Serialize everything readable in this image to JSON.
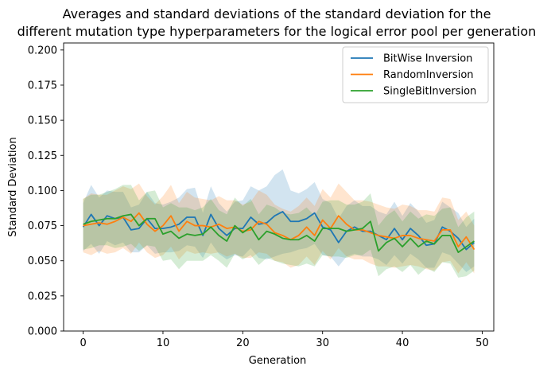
{
  "chart_data": {
    "type": "line",
    "title_line1": "Averages and standard deviations of the standard deviation for the",
    "title_line2": "different mutation type hyperparameters for the logical error pool per generation",
    "xlabel": "Generation",
    "ylabel": "Standard Deviation",
    "xlim": [
      -2.45,
      51.45
    ],
    "ylim": [
      0,
      0.205
    ],
    "xticks": [
      0,
      10,
      20,
      30,
      40,
      50
    ],
    "yticks": [
      0.0,
      0.025,
      0.05,
      0.075,
      0.1,
      0.125,
      0.15,
      0.175,
      0.2
    ],
    "ytick_labels": [
      "0.000",
      "0.025",
      "0.050",
      "0.075",
      "0.100",
      "0.125",
      "0.150",
      "0.175",
      "0.200"
    ],
    "legend_position": "upper right",
    "band": "mean ± one standard deviation (shaded)",
    "series": [
      {
        "name": "BitWise Inversion",
        "color": "#1f77b4",
        "values": [
          0.074,
          0.083,
          0.075,
          0.082,
          0.08,
          0.081,
          0.072,
          0.073,
          0.08,
          0.073,
          0.073,
          0.074,
          0.076,
          0.081,
          0.081,
          0.068,
          0.083,
          0.073,
          0.068,
          0.073,
          0.073,
          0.081,
          0.076,
          0.077,
          0.082,
          0.085,
          0.078,
          0.078,
          0.08,
          0.084,
          0.074,
          0.072,
          0.063,
          0.071,
          0.074,
          0.071,
          0.071,
          0.068,
          0.065,
          0.073,
          0.065,
          0.073,
          0.068,
          0.061,
          0.062,
          0.074,
          0.071,
          0.066,
          0.058,
          0.063
        ],
        "std": [
          0.017,
          0.021,
          0.02,
          0.018,
          0.019,
          0.018,
          0.016,
          0.017,
          0.019,
          0.018,
          0.017,
          0.018,
          0.019,
          0.02,
          0.021,
          0.016,
          0.02,
          0.018,
          0.017,
          0.019,
          0.02,
          0.022,
          0.024,
          0.026,
          0.029,
          0.03,
          0.022,
          0.02,
          0.021,
          0.022,
          0.02,
          0.019,
          0.017,
          0.018,
          0.019,
          0.018,
          0.018,
          0.017,
          0.018,
          0.019,
          0.017,
          0.018,
          0.017,
          0.016,
          0.017,
          0.018,
          0.017,
          0.018,
          0.016,
          0.017
        ]
      },
      {
        "name": "RandomInversion",
        "color": "#ff7f0e",
        "values": [
          0.075,
          0.076,
          0.077,
          0.076,
          0.078,
          0.081,
          0.078,
          0.084,
          0.076,
          0.071,
          0.075,
          0.082,
          0.071,
          0.078,
          0.075,
          0.075,
          0.074,
          0.076,
          0.073,
          0.074,
          0.071,
          0.072,
          0.078,
          0.076,
          0.07,
          0.068,
          0.065,
          0.068,
          0.074,
          0.068,
          0.079,
          0.073,
          0.082,
          0.076,
          0.072,
          0.072,
          0.07,
          0.068,
          0.067,
          0.066,
          0.068,
          0.068,
          0.066,
          0.065,
          0.064,
          0.072,
          0.072,
          0.06,
          0.067,
          0.058
        ],
        "std": [
          0.019,
          0.022,
          0.02,
          0.021,
          0.022,
          0.022,
          0.023,
          0.021,
          0.02,
          0.019,
          0.021,
          0.022,
          0.02,
          0.021,
          0.02,
          0.019,
          0.019,
          0.02,
          0.02,
          0.019,
          0.019,
          0.02,
          0.022,
          0.021,
          0.02,
          0.019,
          0.02,
          0.021,
          0.021,
          0.021,
          0.022,
          0.022,
          0.023,
          0.023,
          0.021,
          0.021,
          0.022,
          0.022,
          0.021,
          0.021,
          0.022,
          0.021,
          0.02,
          0.021,
          0.021,
          0.023,
          0.022,
          0.019,
          0.018,
          0.017
        ]
      },
      {
        "name": "SingleBitInversion",
        "color": "#2ca02c",
        "values": [
          0.076,
          0.078,
          0.079,
          0.08,
          0.08,
          0.082,
          0.083,
          0.075,
          0.08,
          0.08,
          0.069,
          0.071,
          0.066,
          0.069,
          0.068,
          0.069,
          0.074,
          0.068,
          0.064,
          0.075,
          0.07,
          0.074,
          0.065,
          0.071,
          0.069,
          0.066,
          0.065,
          0.065,
          0.068,
          0.064,
          0.073,
          0.073,
          0.073,
          0.071,
          0.072,
          0.073,
          0.078,
          0.057,
          0.063,
          0.066,
          0.06,
          0.066,
          0.06,
          0.064,
          0.062,
          0.068,
          0.068,
          0.056,
          0.06,
          0.064
        ],
        "std": [
          0.018,
          0.019,
          0.018,
          0.019,
          0.021,
          0.022,
          0.021,
          0.018,
          0.019,
          0.02,
          0.019,
          0.02,
          0.022,
          0.019,
          0.018,
          0.019,
          0.02,
          0.018,
          0.019,
          0.02,
          0.019,
          0.02,
          0.018,
          0.019,
          0.019,
          0.018,
          0.018,
          0.019,
          0.02,
          0.018,
          0.019,
          0.02,
          0.02,
          0.019,
          0.018,
          0.019,
          0.02,
          0.018,
          0.019,
          0.02,
          0.018,
          0.019,
          0.02,
          0.019,
          0.02,
          0.019,
          0.02,
          0.018,
          0.021,
          0.021
        ]
      }
    ]
  }
}
